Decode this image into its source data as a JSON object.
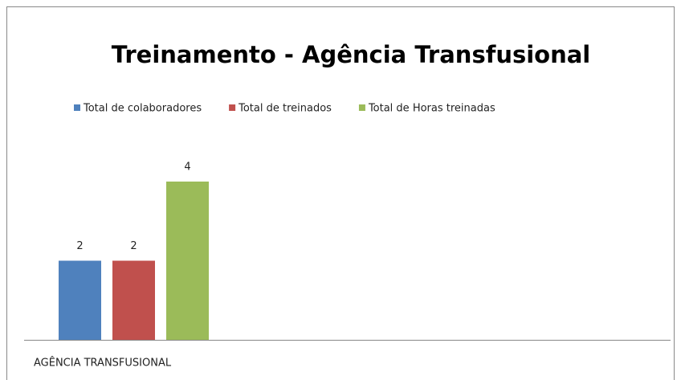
{
  "chart_data": {
    "type": "bar",
    "title": "Treinamento - Agência Transfusional",
    "categories": [
      "AGÊNCIA TRANSFUSIONAL"
    ],
    "series": [
      {
        "name": "Total de colaboradores",
        "color": "#4f81bd",
        "values": [
          2
        ]
      },
      {
        "name": "Total de treinados",
        "color": "#c0504d",
        "values": [
          2
        ]
      },
      {
        "name": "Total de Horas treinadas",
        "color": "#9bbb59",
        "values": [
          4
        ]
      }
    ],
    "legend": "top",
    "data_labels": true,
    "grid": false
  }
}
